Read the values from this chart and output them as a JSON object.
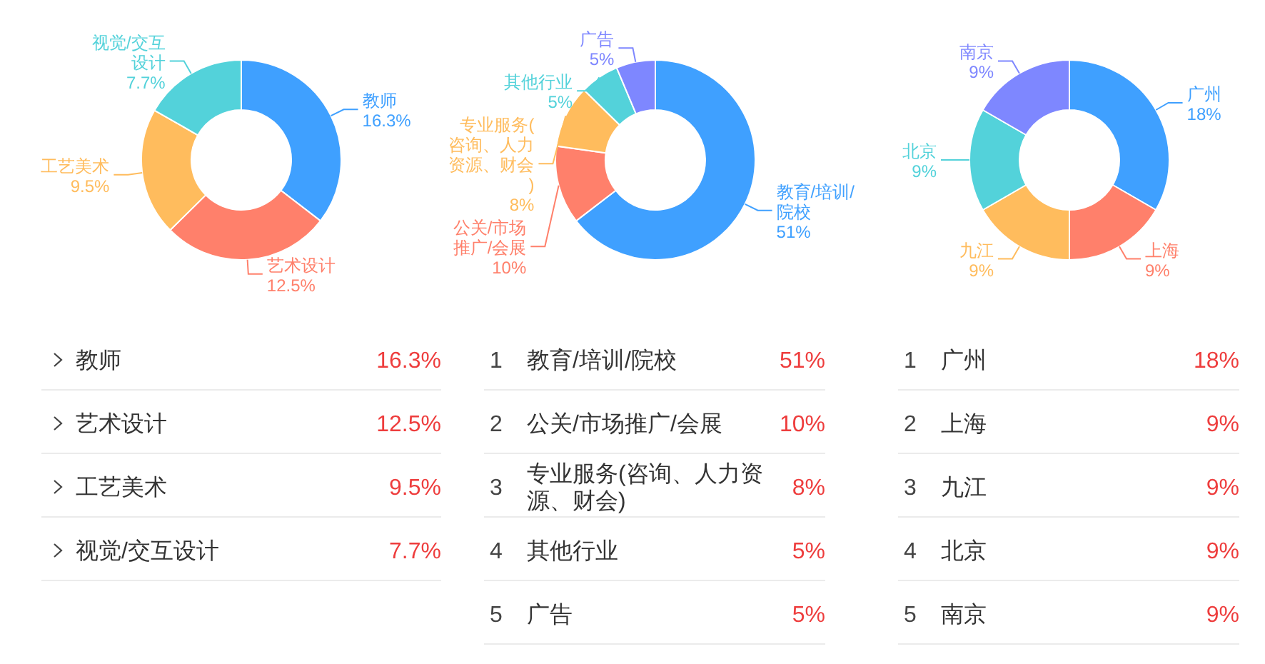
{
  "chart_data": [
    {
      "type": "donut",
      "categories": [
        "教师",
        "艺术设计",
        "工艺美术",
        "视觉/交互设计"
      ],
      "values": [
        16.3,
        12.5,
        9.5,
        7.7
      ],
      "colors": [
        "#3fa0ff",
        "#ff806b",
        "#ffbc5d",
        "#53d2da"
      ],
      "value_labels": [
        "16.3%",
        "12.5%",
        "9.5%",
        "7.7%"
      ]
    },
    {
      "type": "donut",
      "categories": [
        "教育/培训/院校",
        "公关/市场推广/会展",
        "专业服务(咨询、人力资源、财会)",
        "其他行业",
        "广告"
      ],
      "values": [
        51,
        10,
        8,
        5,
        5
      ],
      "colors": [
        "#3fa0ff",
        "#ff806b",
        "#ffbc5d",
        "#53d2da",
        "#7e87ff"
      ],
      "value_labels": [
        "51%",
        "10%",
        "8%",
        "5%",
        "5%"
      ],
      "annotations": [
        "1",
        "2",
        "3",
        "4",
        "5"
      ]
    },
    {
      "type": "donut",
      "categories": [
        "广州",
        "上海",
        "九江",
        "北京",
        "南京"
      ],
      "values": [
        18,
        9,
        9,
        9,
        9
      ],
      "colors": [
        "#3fa0ff",
        "#ff806b",
        "#ffbc5d",
        "#53d2da",
        "#7e87ff"
      ],
      "value_labels": [
        "18%",
        "9%",
        "9%",
        "9%",
        "9%"
      ],
      "annotations": [
        "1",
        "2",
        "3",
        "4",
        "5"
      ]
    }
  ]
}
